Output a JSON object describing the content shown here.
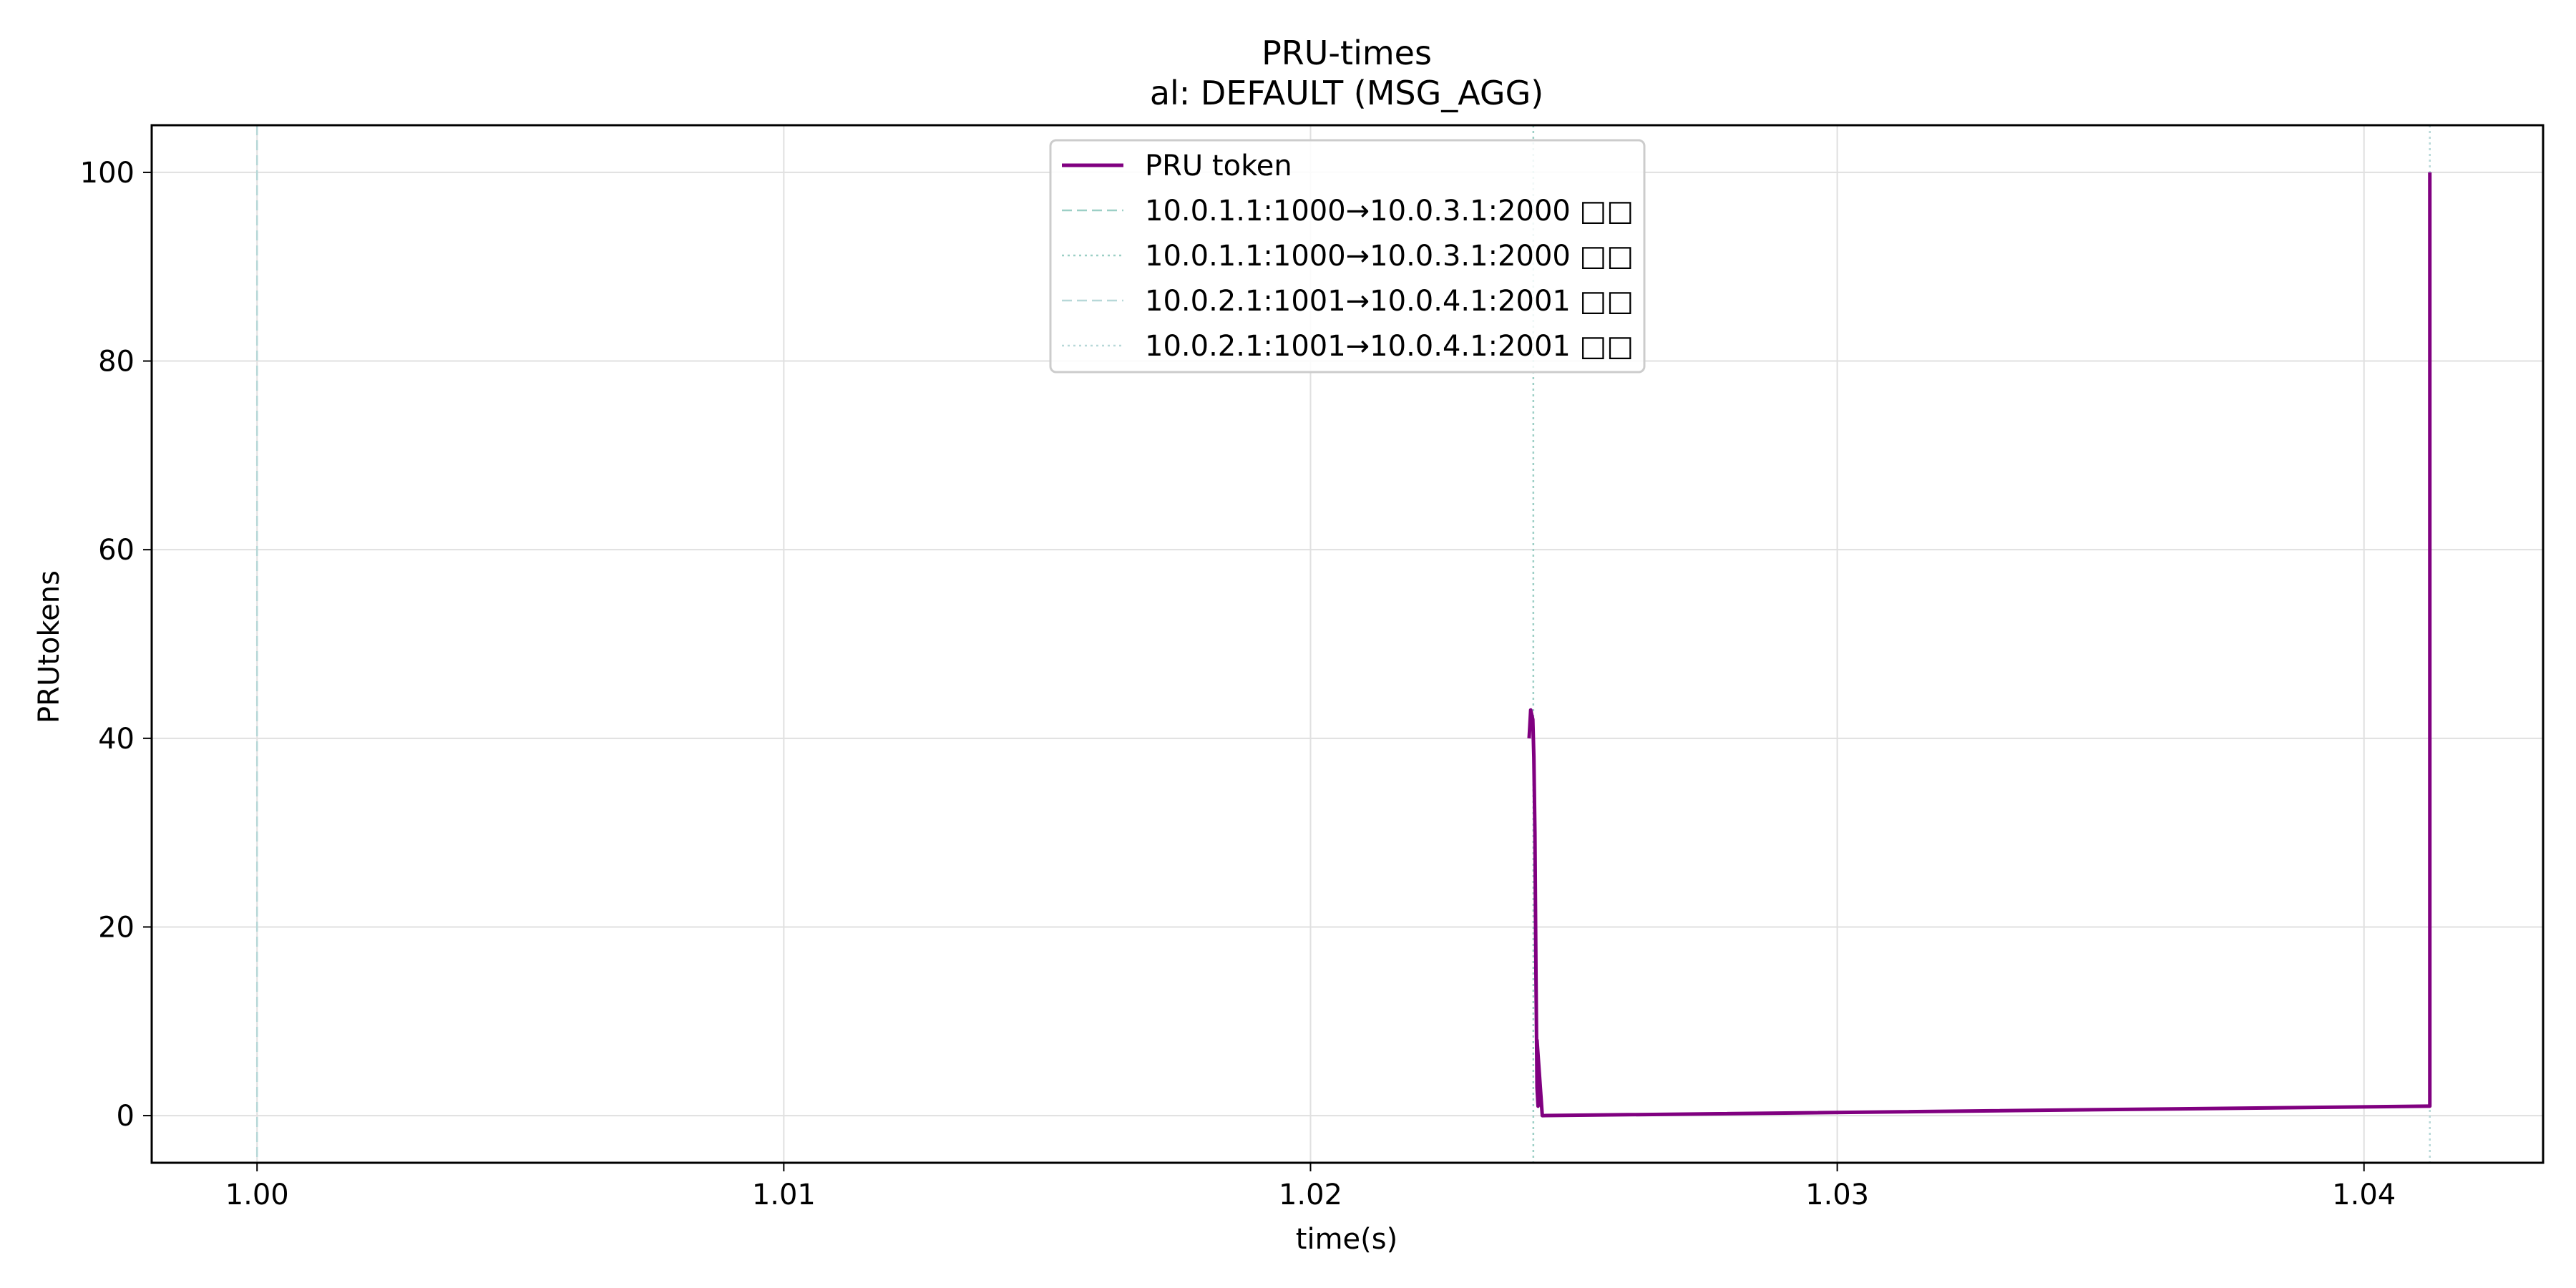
{
  "chart_data": {
    "type": "line",
    "title": "PRU-times",
    "subtitle": "al: DEFAULT (MSG_AGG)",
    "xlabel": "time(s)",
    "ylabel": "PRUtokens",
    "xlim": [
      0.998,
      1.0434
    ],
    "ylim": [
      -5,
      105
    ],
    "xticks": [
      1.0,
      1.01,
      1.02,
      1.03,
      1.04
    ],
    "xtick_labels": [
      "1.00",
      "1.01",
      "1.02",
      "1.03",
      "1.04"
    ],
    "yticks": [
      0,
      20,
      40,
      60,
      80,
      100
    ],
    "ytick_labels": [
      "0",
      "20",
      "40",
      "60",
      "80",
      "100"
    ],
    "grid": true,
    "legend_position": "top-center",
    "series": [
      {
        "name": "PRU token",
        "color": "#800080",
        "style": "solid",
        "x": [
          1.02415,
          1.02418,
          1.02422,
          1.02424,
          1.02426,
          1.02428,
          1.0243,
          1.02432,
          1.0243,
          1.0244,
          1.0412,
          1.04125,
          1.04125
        ],
        "y": [
          40,
          43,
          42,
          38,
          30,
          15,
          3,
          1,
          8,
          0,
          1,
          1,
          100
        ]
      }
    ],
    "vlines": [
      {
        "name": "10.0.1.1:1000→10.0.3.1:2000 □□",
        "x": 1.0,
        "color": "#9ccfc6",
        "style": "dashed"
      },
      {
        "name": "10.0.1.1:1000→10.0.3.1:2000 □□",
        "x": 1.02423,
        "color": "#9ccfc6",
        "style": "dotted"
      },
      {
        "name": "10.0.2.1:1001→10.0.4.1:2001 □□",
        "x": 1.0,
        "color": "#b7d8d8",
        "style": "dashed"
      },
      {
        "name": "10.0.2.1:1001→10.0.4.1:2001 □□",
        "x": 1.04125,
        "color": "#b7d8d8",
        "style": "dotted"
      }
    ]
  }
}
